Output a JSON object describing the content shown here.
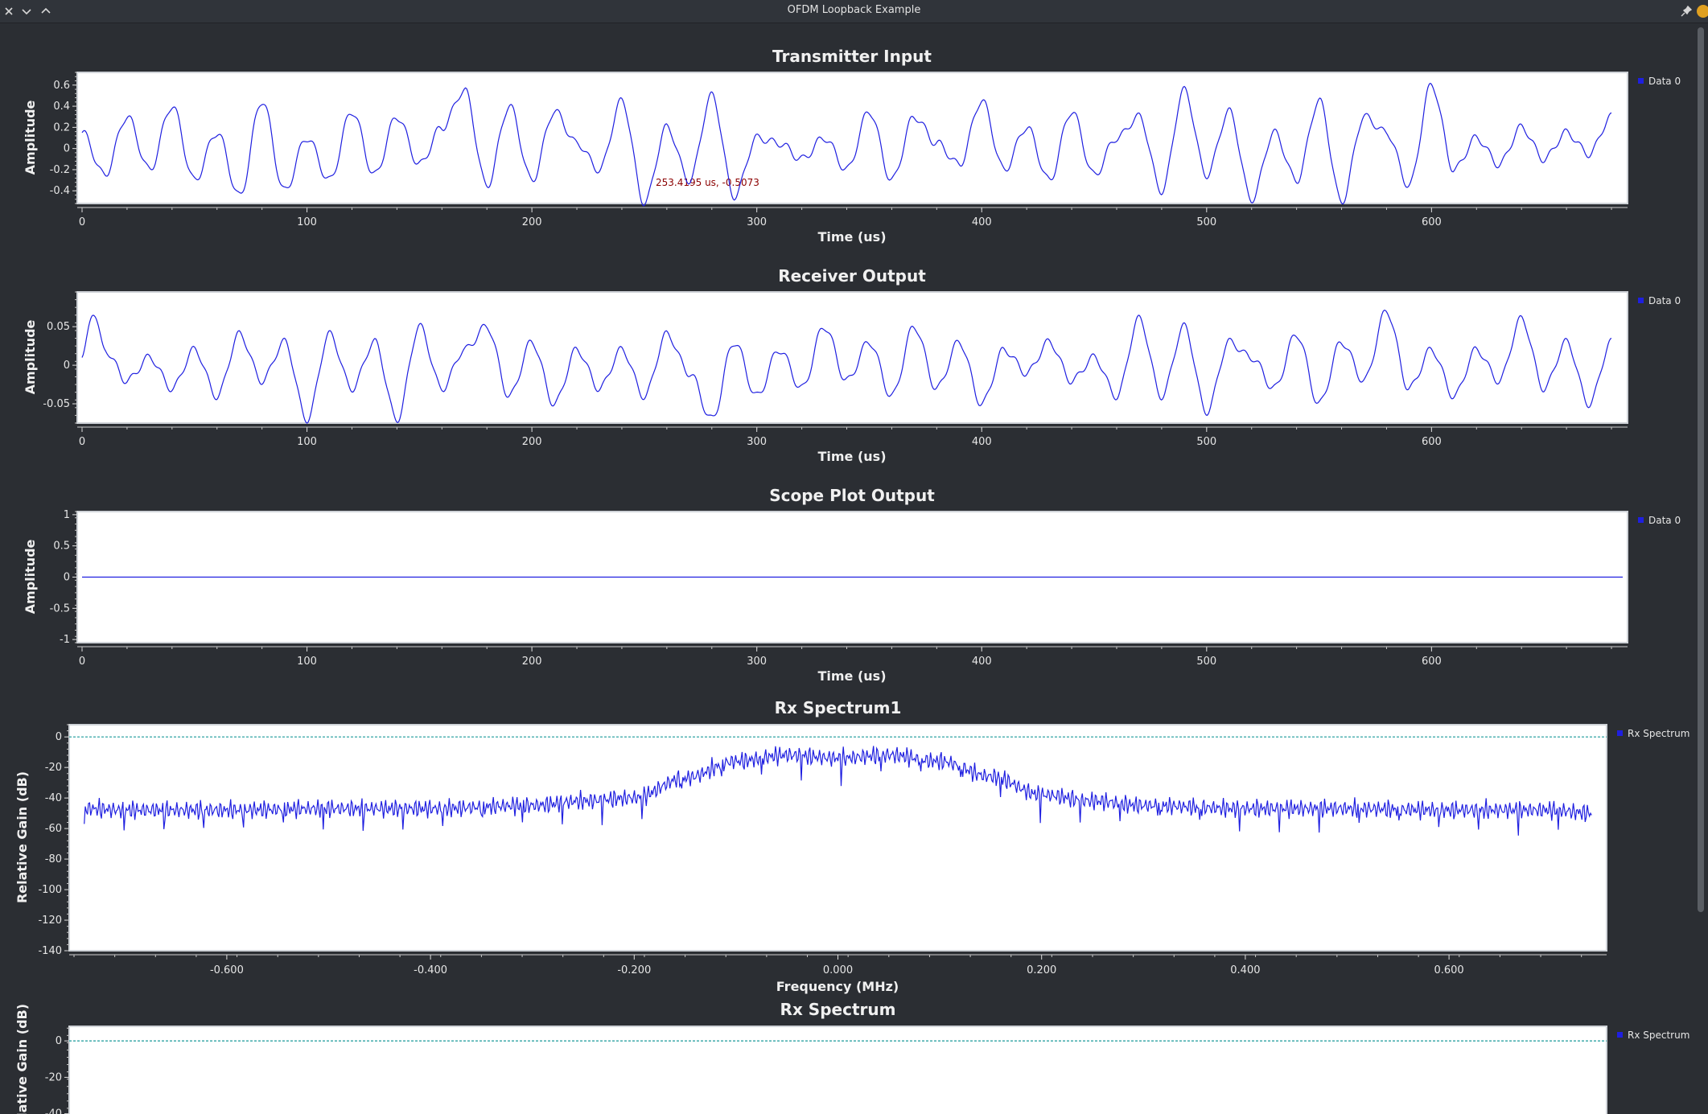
{
  "window": {
    "title": "OFDM Loopback Example"
  },
  "titlebar_icons": {
    "left": [
      "close-icon",
      "chevron-down-icon",
      "chevron-up-icon"
    ],
    "right": [
      "pin-icon",
      "app-icon"
    ]
  },
  "colors": {
    "background": "#2b2e33",
    "plot_bg": "#ffffff",
    "series": "#1f1fe0",
    "marker_text": "#8b0000",
    "reference_line": "#1a9a9a"
  },
  "panels": [
    {
      "id": "tx",
      "title": "Transmitter Input",
      "xlabel": "Time (us)",
      "ylabel": "Amplitude",
      "legend": "Data 0",
      "marker": "253.4195 us, -0.5073"
    },
    {
      "id": "rxout",
      "title": "Receiver Output",
      "xlabel": "Time (us)",
      "ylabel": "Amplitude",
      "legend": "Data 0"
    },
    {
      "id": "scope",
      "title": "Scope Plot Output",
      "xlabel": "Time (us)",
      "ylabel": "Amplitude",
      "legend": "Data 0"
    },
    {
      "id": "spec1",
      "title": "Rx Spectrum1",
      "xlabel": "Frequency (MHz)",
      "ylabel": "Relative Gain (dB)",
      "legend": "Rx Spectrum"
    },
    {
      "id": "spec2",
      "title": "Rx Spectrum",
      "xlabel": "",
      "ylabel": "Relative Gain (dB)",
      "legend": "Rx Spectrum"
    }
  ],
  "chart_data": [
    {
      "type": "line",
      "title": "Transmitter Input",
      "xlabel": "Time (us)",
      "ylabel": "Amplitude",
      "xlim": [
        0,
        685
      ],
      "ylim": [
        -0.52,
        0.72
      ],
      "xticks": [
        "0",
        "100",
        "200",
        "300",
        "400",
        "500",
        "600"
      ],
      "yticks": [
        "0.6",
        "0.4",
        "0.2",
        "0",
        "-0.2",
        "-0.4"
      ],
      "series": [
        {
          "name": "Data 0",
          "x": [
            0,
            10,
            20,
            30,
            40,
            50,
            60,
            70,
            80,
            90,
            100,
            110,
            120,
            130,
            140,
            150,
            160,
            170,
            180,
            190,
            200,
            210,
            220,
            230,
            240,
            250,
            260,
            270,
            280,
            290,
            300,
            310,
            320,
            330,
            340,
            350,
            360,
            370,
            380,
            390,
            400,
            410,
            420,
            430,
            440,
            450,
            460,
            470,
            480,
            490,
            500,
            510,
            520,
            530,
            540,
            550,
            560,
            570,
            580,
            590,
            600,
            610,
            620,
            630,
            640,
            650,
            660,
            670,
            680
          ],
          "values": [
            0.15,
            -0.25,
            0.3,
            -0.2,
            0.4,
            -0.3,
            0.15,
            -0.45,
            0.45,
            -0.4,
            0.1,
            -0.3,
            0.35,
            -0.25,
            0.3,
            -0.15,
            0.2,
            0.55,
            -0.35,
            0.4,
            -0.3,
            0.35,
            0.05,
            -0.2,
            0.45,
            -0.51,
            0.2,
            -0.3,
            0.5,
            -0.45,
            0.1,
            0.05,
            -0.1,
            0.1,
            -0.2,
            0.35,
            -0.3,
            0.3,
            0.05,
            -0.15,
            0.45,
            -0.2,
            0.2,
            -0.3,
            0.35,
            -0.25,
            0.1,
            0.3,
            -0.4,
            0.55,
            -0.25,
            0.35,
            -0.48,
            0.15,
            -0.3,
            0.45,
            -0.5,
            0.3,
            0.15,
            -0.35,
            0.6,
            -0.2,
            0.1,
            -0.15,
            0.2,
            -0.1,
            0.15,
            -0.05,
            0.3
          ]
        }
      ]
    },
    {
      "type": "line",
      "title": "Receiver Output",
      "xlabel": "Time (us)",
      "ylabel": "Amplitude",
      "xlim": [
        0,
        685
      ],
      "ylim": [
        -0.075,
        0.095
      ],
      "xticks": [
        "0",
        "100",
        "200",
        "300",
        "400",
        "500",
        "600"
      ],
      "yticks": [
        "0.05",
        "0",
        "-0.05"
      ],
      "series": [
        {
          "name": "Data 0",
          "x": [
            0,
            5,
            10,
            20,
            30,
            40,
            50,
            60,
            70,
            80,
            90,
            100,
            110,
            120,
            130,
            140,
            150,
            160,
            170,
            180,
            190,
            200,
            210,
            220,
            230,
            240,
            250,
            260,
            270,
            280,
            290,
            300,
            310,
            320,
            330,
            340,
            350,
            360,
            370,
            380,
            390,
            400,
            410,
            420,
            430,
            440,
            450,
            460,
            470,
            480,
            490,
            500,
            510,
            520,
            530,
            540,
            550,
            560,
            570,
            580,
            590,
            600,
            610,
            620,
            630,
            640,
            650,
            660,
            670,
            680
          ],
          "values": [
            0.01,
            0.07,
            0.02,
            -0.02,
            0.01,
            -0.03,
            0.02,
            -0.04,
            0.04,
            -0.02,
            0.03,
            -0.07,
            0.04,
            -0.03,
            0.03,
            -0.07,
            0.05,
            -0.03,
            0.02,
            0.05,
            -0.04,
            0.03,
            -0.05,
            0.02,
            -0.03,
            0.02,
            -0.04,
            0.04,
            -0.01,
            -0.07,
            0.03,
            -0.04,
            0.02,
            -0.03,
            0.05,
            -0.02,
            0.03,
            -0.04,
            0.05,
            -0.03,
            0.03,
            -0.05,
            0.02,
            -0.01,
            0.03,
            -0.02,
            0.01,
            -0.04,
            0.06,
            -0.04,
            0.05,
            -0.06,
            0.03,
            0.01,
            -0.03,
            0.04,
            -0.05,
            0.03,
            -0.02,
            0.07,
            -0.03,
            0.02,
            -0.04,
            0.02,
            -0.02,
            0.06,
            -0.03,
            0.03,
            -0.05,
            0.03
          ]
        }
      ]
    },
    {
      "type": "line",
      "title": "Scope Plot Output",
      "xlabel": "Time (us)",
      "ylabel": "Amplitude",
      "xlim": [
        0,
        685
      ],
      "ylim": [
        -1.05,
        1.05
      ],
      "xticks": [
        "0",
        "100",
        "200",
        "300",
        "400",
        "500",
        "600"
      ],
      "yticks": [
        "1",
        "0.5",
        "0",
        "-0.5",
        "-1"
      ],
      "series": [
        {
          "name": "Data 0",
          "x": [
            0,
            685
          ],
          "values": [
            0,
            0
          ]
        }
      ]
    },
    {
      "type": "line",
      "title": "Rx Spectrum1",
      "xlabel": "Frequency (MHz)",
      "ylabel": "Relative Gain (dB)",
      "xlim": [
        -0.75,
        0.75
      ],
      "ylim": [
        -140,
        8
      ],
      "xticks": [
        "-0.600",
        "-0.400",
        "-0.200",
        "0.000",
        "0.200",
        "0.400",
        "0.600"
      ],
      "yticks": [
        "0",
        "-20",
        "-40",
        "-60",
        "-80",
        "-100",
        "-120",
        "-140"
      ],
      "series": [
        {
          "name": "Rx Spectrum",
          "x": [
            -0.74,
            -0.7,
            -0.6,
            -0.5,
            -0.4,
            -0.3,
            -0.25,
            -0.2,
            -0.15,
            -0.1,
            -0.05,
            0.0,
            0.05,
            0.1,
            0.15,
            0.2,
            0.25,
            0.3,
            0.4,
            0.5,
            0.6,
            0.7,
            0.74
          ],
          "values": [
            -45,
            -46,
            -46,
            -45,
            -45,
            -43,
            -40,
            -38,
            -25,
            -14,
            -10,
            -12,
            -10,
            -14,
            -24,
            -36,
            -40,
            -43,
            -45,
            -45,
            -46,
            -46,
            -48
          ]
        }
      ]
    },
    {
      "type": "line",
      "title": "Rx Spectrum",
      "xlabel": "",
      "ylabel": "Relative Gain (dB)",
      "ylim": [
        -45,
        8
      ],
      "yticks": [
        "0",
        "-20",
        "-40"
      ],
      "series": [
        {
          "name": "Rx Spectrum",
          "x": [],
          "values": []
        }
      ]
    }
  ]
}
